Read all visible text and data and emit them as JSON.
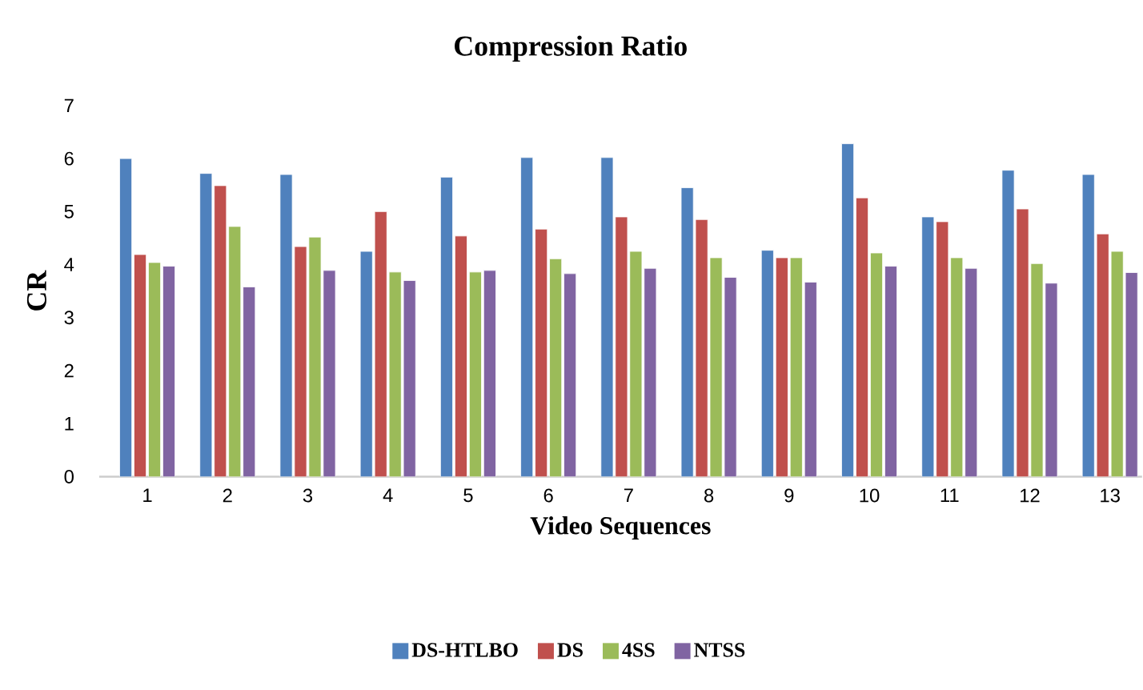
{
  "chart_data": {
    "type": "bar",
    "title": "Compression Ratio",
    "xlabel": "Video Sequences",
    "ylabel": "CR",
    "categories": [
      "1",
      "2",
      "3",
      "4",
      "5",
      "6",
      "7",
      "8",
      "9",
      "10",
      "11",
      "12",
      "13"
    ],
    "series": [
      {
        "name": "DS-HTLBO",
        "color": "#4f81bd",
        "values": [
          6.0,
          5.72,
          5.7,
          4.25,
          5.65,
          6.02,
          6.02,
          5.45,
          4.27,
          6.28,
          4.9,
          5.78,
          5.7
        ]
      },
      {
        "name": "DS",
        "color": "#c0504d",
        "values": [
          4.19,
          5.49,
          4.34,
          5.0,
          4.54,
          4.67,
          4.9,
          4.85,
          4.13,
          5.26,
          4.81,
          5.05,
          4.58
        ]
      },
      {
        "name": "4SS",
        "color": "#9bbb59",
        "values": [
          4.04,
          4.72,
          4.52,
          3.86,
          3.86,
          4.11,
          4.25,
          4.13,
          4.13,
          4.22,
          4.13,
          4.02,
          4.25
        ]
      },
      {
        "name": "NTSS",
        "color": "#8064a2",
        "values": [
          3.97,
          3.58,
          3.89,
          3.7,
          3.89,
          3.83,
          3.93,
          3.76,
          3.67,
          3.97,
          3.93,
          3.65,
          3.85
        ]
      }
    ],
    "ylim": [
      0,
      7
    ],
    "yticks": [
      0,
      1,
      2,
      3,
      4,
      5,
      6,
      7
    ],
    "grid": false,
    "legend": "bottom"
  }
}
